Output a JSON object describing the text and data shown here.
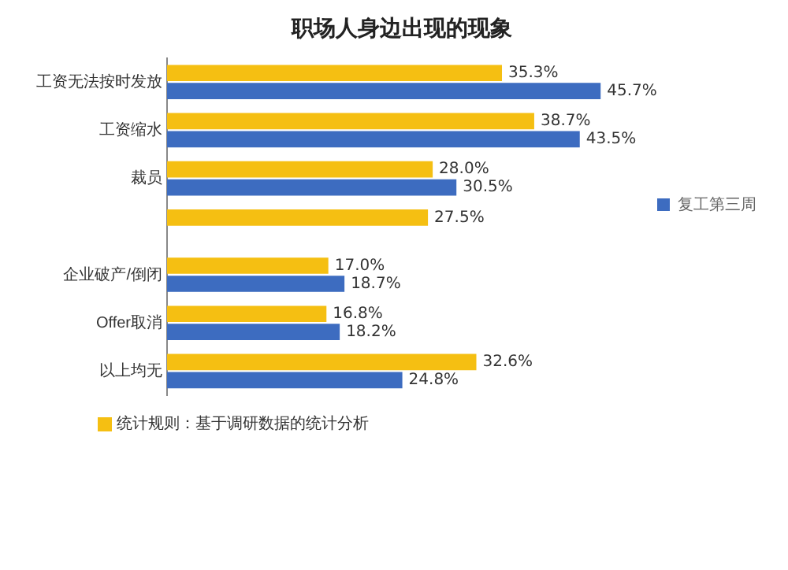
{
  "chart_data": {
    "type": "bar",
    "orientation": "horizontal",
    "title": "职场人身边出现的现象",
    "categories": [
      "工资无法按时发放",
      "工资缩水",
      "裁员",
      null,
      "企业破产/倒闭",
      "Offer取消",
      "以上均无"
    ],
    "series": [
      {
        "color": "#f5bf12",
        "values": [
          35.3,
          38.7,
          28.0,
          27.5,
          17.0,
          16.8,
          32.6
        ],
        "value_labels": [
          "35.3%",
          "38.7%",
          "28.0%",
          "27.5%",
          "17.0%",
          "16.8%",
          "32.6%"
        ]
      },
      {
        "name": "复工第三周",
        "color": "#3d6cc0",
        "values": [
          45.7,
          43.5,
          30.5,
          null,
          18.7,
          18.2,
          24.8
        ],
        "value_labels": [
          "45.7%",
          "43.5%",
          "30.5%",
          null,
          "18.7%",
          "18.2%",
          "24.8%"
        ]
      }
    ],
    "legend": "right",
    "annotations": [
      "统计规则：基于调研数据的统计分析"
    ]
  }
}
